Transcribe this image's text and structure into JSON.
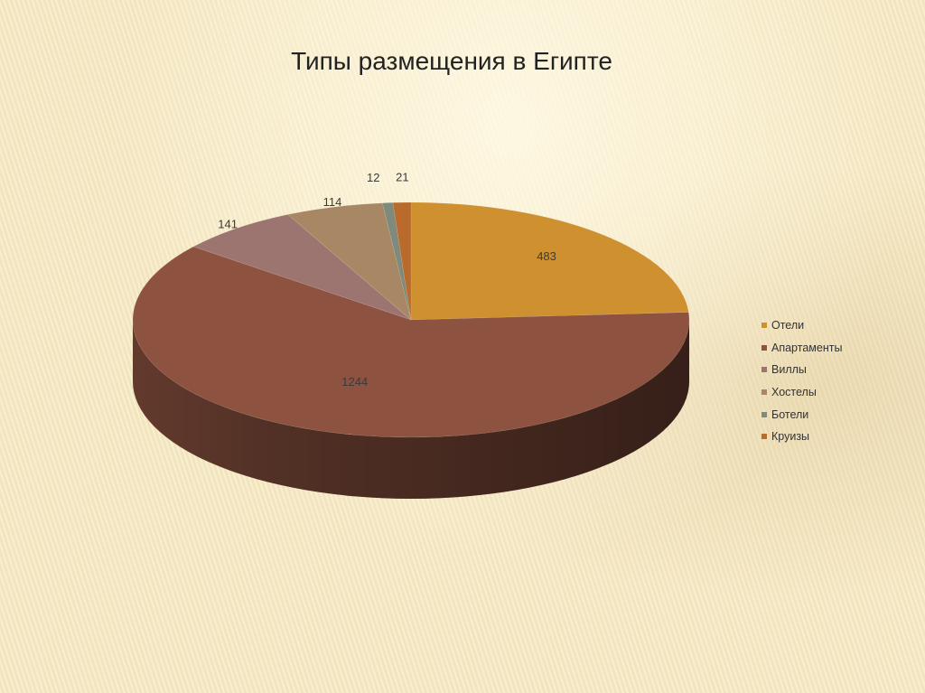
{
  "chart_data": {
    "type": "pie",
    "title": "Типы размещения в Египте",
    "categories": [
      "Отели",
      "Апартаменты",
      "Виллы",
      "Хостелы",
      "Ботели",
      "Круизы"
    ],
    "values": [
      483,
      1244,
      141,
      114,
      12,
      21
    ],
    "data_labels": [
      "483",
      "1244",
      "141",
      "114",
      "12",
      "21"
    ],
    "colors": [
      "#cf9030",
      "#8d5340",
      "#9c7570",
      "#a88765",
      "#7f8a7c",
      "#b86b2a"
    ],
    "legend_position": "right",
    "3d": true
  }
}
